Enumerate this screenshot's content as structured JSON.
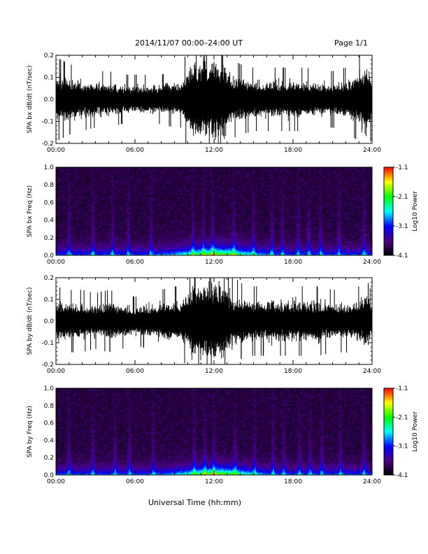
{
  "header": {
    "date_range": "2014/11/07   00:00–24:00 UT",
    "page": "Page 1/1"
  },
  "footer": {
    "xlabel": "Universal Time (hh:mm)"
  },
  "chart_data": [
    {
      "type": "line",
      "ylabel": "SPA bx dB/dt (nT/sec)",
      "xlim": [
        "00:00",
        "24:00"
      ],
      "ylim": [
        -0.2,
        0.2
      ],
      "x_ticks": [
        "00:00",
        "06:00",
        "12:00",
        "18:00",
        "24:00"
      ],
      "y_ticks": [
        "-0.2",
        "-0.1",
        "0.0",
        "0.1",
        "0.2"
      ],
      "series": [
        {
          "x_hours": [
            0,
            1,
            2,
            3,
            4,
            5,
            6,
            7,
            8,
            9,
            9.5,
            10,
            10.5,
            11,
            11.5,
            12,
            12.5,
            13,
            13.5,
            14,
            15,
            16,
            17,
            18,
            19,
            20,
            21,
            22,
            23,
            23.5,
            24
          ],
          "amplitude": [
            0.12,
            0.1,
            0.09,
            0.08,
            0.08,
            0.07,
            0.07,
            0.07,
            0.07,
            0.08,
            0.08,
            0.15,
            0.2,
            0.2,
            0.2,
            0.2,
            0.2,
            0.16,
            0.11,
            0.1,
            0.09,
            0.09,
            0.09,
            0.09,
            0.09,
            0.08,
            0.08,
            0.09,
            0.12,
            0.2,
            0.1
          ],
          "color": "#000000"
        }
      ]
    },
    {
      "type": "heatmap",
      "ylabel": "SPA bx Freq (Hz)",
      "xlim": [
        "00:00",
        "24:00"
      ],
      "ylim": [
        0.0,
        1.0
      ],
      "x_ticks": [
        "00:00",
        "06:00",
        "12:00",
        "18:00",
        "24:00"
      ],
      "y_ticks": [
        "0.0",
        "0.2",
        "0.4",
        "0.6",
        "0.8",
        "1.0"
      ],
      "colorbar": {
        "label": "Log10 Power",
        "ticks": [
          "-1.1",
          "-2.1",
          "-3.1",
          "-4.1"
        ],
        "range": [
          -4.1,
          -1.1
        ],
        "colors": [
          "#000000",
          "#4b0082",
          "#0000ff",
          "#00ffff",
          "#00ff00",
          "#ffff00",
          "#ff0000"
        ]
      },
      "peak_times_hours": [
        1.0,
        2.8,
        4.3,
        5.5,
        7.2,
        10.4,
        11.2,
        11.9,
        13.5,
        15.0,
        16.4,
        17.2,
        18.4,
        19.2,
        20.1,
        21.5,
        23.4
      ]
    },
    {
      "type": "line",
      "ylabel": "SPA by dB/dt (nT/sec)",
      "xlim": [
        "00:00",
        "24:00"
      ],
      "ylim": [
        -0.2,
        0.2
      ],
      "x_ticks": [
        "00:00",
        "06:00",
        "12:00",
        "18:00",
        "24:00"
      ],
      "y_ticks": [
        "-0.2",
        "-0.1",
        "0.0",
        "0.1",
        "0.2"
      ],
      "series": [
        {
          "x_hours": [
            0,
            1,
            2,
            3,
            4,
            5,
            6,
            7,
            8,
            9,
            9.5,
            10,
            10.5,
            11,
            11.5,
            12,
            12.5,
            13,
            13.5,
            14,
            15,
            16,
            17,
            18,
            19,
            20,
            21,
            22,
            23,
            23.5,
            24
          ],
          "amplitude": [
            0.1,
            0.09,
            0.09,
            0.08,
            0.09,
            0.08,
            0.07,
            0.08,
            0.09,
            0.1,
            0.1,
            0.14,
            0.2,
            0.2,
            0.2,
            0.2,
            0.2,
            0.16,
            0.13,
            0.11,
            0.1,
            0.1,
            0.1,
            0.1,
            0.1,
            0.1,
            0.09,
            0.09,
            0.1,
            0.13,
            0.08
          ],
          "color": "#000000"
        }
      ]
    },
    {
      "type": "heatmap",
      "ylabel": "SPA by Freq (Hz)",
      "xlim": [
        "00:00",
        "24:00"
      ],
      "ylim": [
        0.0,
        1.0
      ],
      "x_ticks": [
        "00:00",
        "06:00",
        "12:00",
        "18:00",
        "24:00"
      ],
      "y_ticks": [
        "0.0",
        "0.2",
        "0.4",
        "0.6",
        "0.8",
        "1.0"
      ],
      "colorbar": {
        "label": "Log10 Power",
        "ticks": [
          "-1.1",
          "-2.1",
          "-3.1",
          "-4.1"
        ],
        "range": [
          -4.1,
          -1.1
        ],
        "colors": [
          "#000000",
          "#4b0082",
          "#0000ff",
          "#00ffff",
          "#00ff00",
          "#ffff00",
          "#ff0000"
        ]
      },
      "peak_times_hours": [
        1.0,
        2.8,
        4.5,
        5.6,
        7.4,
        10.5,
        11.3,
        12.0,
        13.6,
        15.1,
        16.5,
        17.3,
        18.5,
        19.3,
        20.2,
        21.6,
        23.4
      ]
    }
  ]
}
